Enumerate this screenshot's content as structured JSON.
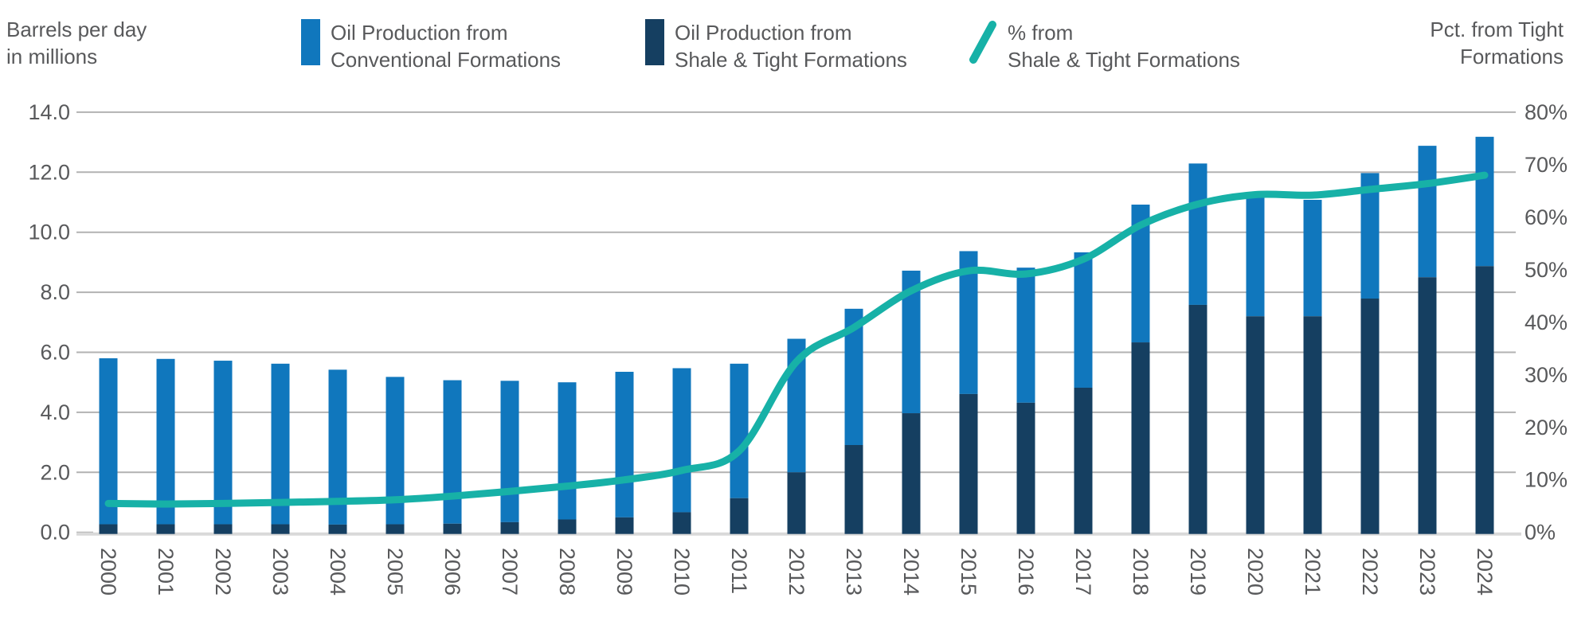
{
  "header": {
    "left_axis_title_line1": "Barrels per day",
    "left_axis_title_line2": "in millions",
    "right_axis_title_line1": "Pct. from Tight",
    "right_axis_title_line2": "Formations"
  },
  "legend": [
    {
      "line1": "Oil Production from",
      "line2": "Conventional Formations",
      "swatch": "rect",
      "color": "#1077bd"
    },
    {
      "line1": "Oil Production from",
      "line2": "Shale & Tight Formations",
      "swatch": "rect",
      "color": "#153f61"
    },
    {
      "line1": "% from",
      "line2": "Shale & Tight Formations",
      "swatch": "line",
      "color": "#17b1a7"
    }
  ],
  "chart_data": {
    "type": "combo_stacked_bar_line",
    "categories": [
      "2000",
      "2001",
      "2002",
      "2003",
      "2004",
      "2005",
      "2006",
      "2007",
      "2008",
      "2009",
      "2010",
      "2011",
      "2012",
      "2013",
      "2014",
      "2015",
      "2016",
      "2017",
      "2018",
      "2019",
      "2020",
      "2021",
      "2022",
      "2023",
      "2024"
    ],
    "series": [
      {
        "name": "Oil Production from Conventional Formations",
        "type": "bar",
        "stack": "production",
        "axis": "left",
        "color": "#1077bd",
        "values": [
          5.53,
          5.51,
          5.45,
          5.35,
          5.16,
          4.91,
          4.78,
          4.71,
          4.57,
          4.85,
          4.8,
          4.48,
          4.45,
          4.54,
          4.75,
          4.76,
          4.5,
          4.51,
          4.59,
          4.71,
          4.06,
          3.88,
          4.18,
          4.38,
          4.31
        ]
      },
      {
        "name": "Oil Production from Shale & Tight Formations",
        "type": "bar",
        "stack": "production",
        "axis": "left",
        "color": "#153f61",
        "values": [
          0.27,
          0.27,
          0.27,
          0.27,
          0.26,
          0.27,
          0.29,
          0.34,
          0.43,
          0.5,
          0.67,
          1.14,
          2.0,
          2.91,
          3.97,
          4.61,
          4.32,
          4.82,
          6.33,
          7.58,
          7.2,
          7.2,
          7.79,
          8.5,
          8.87
        ]
      },
      {
        "name": "% from Shale & Tight Formations",
        "type": "line",
        "axis": "right",
        "color": "#17b1a7",
        "values": [
          5.5,
          5.4,
          5.5,
          5.7,
          5.9,
          6.2,
          6.9,
          7.8,
          8.8,
          10.0,
          11.8,
          15.5,
          32.5,
          39.0,
          46.0,
          49.8,
          49.2,
          52.0,
          58.5,
          62.5,
          64.3,
          64.2,
          65.3,
          66.4,
          68.0
        ]
      }
    ],
    "totals": [
      5.8,
      5.78,
      5.72,
      5.62,
      5.42,
      5.18,
      5.07,
      5.05,
      5.0,
      5.35,
      5.47,
      5.62,
      6.45,
      7.45,
      8.72,
      9.37,
      8.82,
      9.33,
      10.92,
      12.29,
      11.26,
      11.08,
      11.97,
      12.88,
      13.18
    ],
    "axis_left": {
      "title": "Barrels per day in millions",
      "range": [
        0,
        14
      ],
      "tick_step": 2,
      "ticks": [
        "0.0",
        "2.0",
        "4.0",
        "6.0",
        "8.0",
        "10.0",
        "12.0",
        "14.0"
      ]
    },
    "axis_right": {
      "title": "Pct. from Tight Formations",
      "range": [
        0,
        80
      ],
      "tick_step": 10,
      "ticks": [
        "0%",
        "10%",
        "20%",
        "30%",
        "40%",
        "50%",
        "60%",
        "70%",
        "80%"
      ]
    },
    "grid": true,
    "legend_position": "top",
    "colors": {
      "grid": "#b2b2b2",
      "baseline": "#d9d9d9",
      "text": "#58595b",
      "conventional": "#1077bd",
      "shale": "#153f61",
      "pct_line": "#17b1a7"
    }
  }
}
